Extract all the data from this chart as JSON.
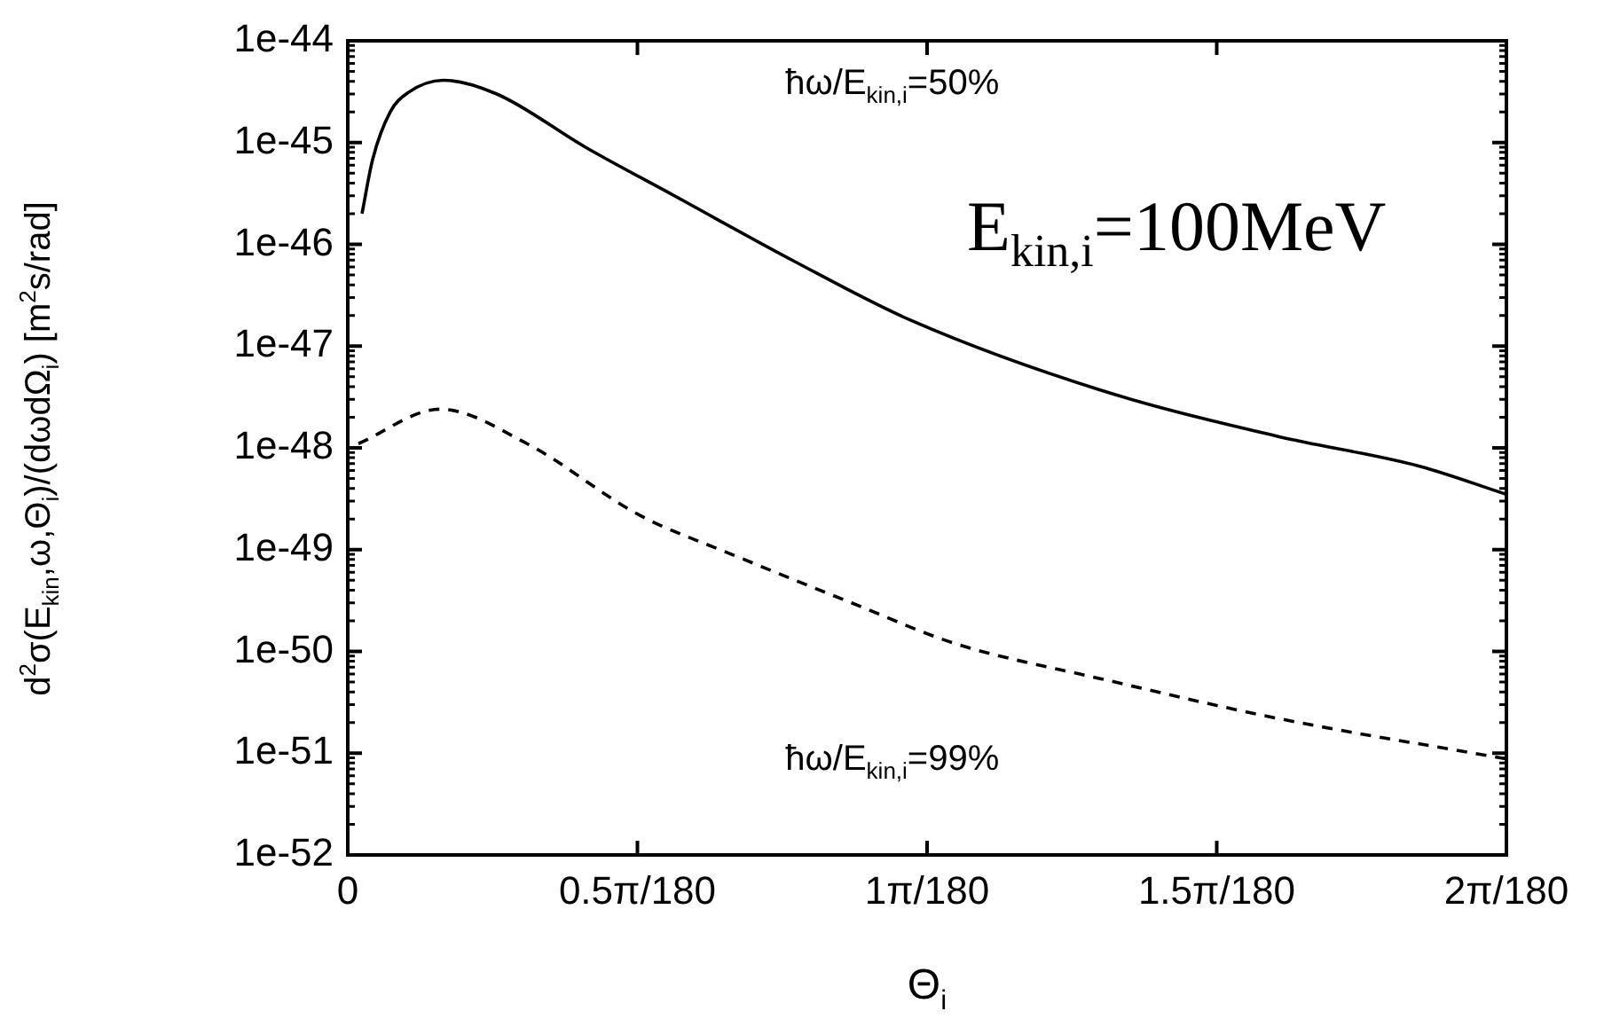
{
  "chart_data": {
    "type": "line",
    "xlabel": "Θ$_{i}$",
    "ylabel": "d$^{2}$σ(E$_{kin}$,ω,Θ$_{i}$)/(dωdΩ$_{i}$) [m$^{2}$s/rad]",
    "annotations": [
      "E$_{kin,i}$=100MeV"
    ],
    "log": "y",
    "grid": false,
    "legend": "top",
    "marker": "none",
    "xlim": [
      0,
      0.034907
    ],
    "xticks": [
      0,
      {
        "value": 0.0087266,
        "label": "0.5π/180"
      },
      {
        "value": 0.017453,
        "label": "1π/180"
      },
      {
        "value": 0.02618,
        "label": "1.5π/180"
      },
      {
        "value": 0.034907,
        "label": "2π/180"
      }
    ],
    "ylim": [
      1e-52,
      1e-44
    ],
    "yticks": [
      1e-52,
      1e-51,
      1e-50,
      1e-49,
      1e-48,
      1e-47,
      1e-46,
      1e-45,
      1e-44
    ],
    "series": [
      {
        "name": "ħω/E$_{kin,i}$=50%",
        "color": "#000000",
        "line_style": "solid",
        "x": [
          0.000428,
          0.000748,
          0.00128,
          0.00182,
          0.00289,
          0.00449,
          0.00716,
          0.00984,
          0.01342,
          0.01695,
          0.02267,
          0.02801,
          0.03229,
          0.0349
        ],
        "values": [
          2e-46,
          6.8e-46,
          2e-45,
          3.1e-45,
          4.1e-45,
          3e-45,
          9e-46,
          3e-46,
          6.9e-47,
          1.8e-47,
          3.7e-48,
          1.3e-48,
          6.6e-49,
          3.5e-49
        ]
      },
      {
        "name": "ħω/E$_{kin,i}$=99%",
        "color": "#000000",
        "line_style": "dashed",
        "x": [
          0.000321,
          0.00278,
          0.0054,
          0.00877,
          0.0116,
          0.01518,
          0.01828,
          0.02267,
          0.02801,
          0.0349
        ],
        "values": [
          1.1e-48,
          2.4e-48,
          1.1e-48,
          2.2e-49,
          8.9e-50,
          3e-50,
          1.2e-50,
          5.4e-51,
          2.2e-51,
          8.8e-52
        ]
      }
    ]
  }
}
